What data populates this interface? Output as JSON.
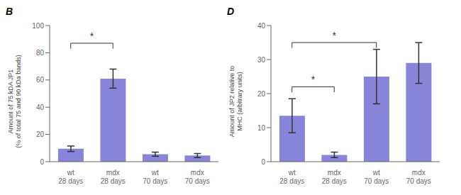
{
  "chart_data": [
    {
      "type": "bar",
      "title": "B",
      "categories": [
        "wt\n28 days",
        "mdx\n28 days",
        "wt\n70 days",
        "mdx\n70 days"
      ],
      "values": [
        9.5,
        61.0,
        5.5,
        4.5
      ],
      "errors": [
        2.0,
        7.0,
        1.5,
        1.5
      ],
      "ylabel": "Amount of 75 kDA JP1\n(% of total 75 and 90 kDa bands)",
      "ylim": [
        0,
        100
      ],
      "yticks": [
        0,
        20,
        40,
        60,
        80,
        100
      ],
      "color": "#8884d8",
      "annotations": [
        {
          "text": "*",
          "y": 87,
          "from": 0,
          "to": 1
        }
      ]
    },
    {
      "type": "bar",
      "title": "D",
      "categories": [
        "wt\n28 days",
        "mdx\n28 days",
        "wt\n70 days",
        "mdx\n70 days"
      ],
      "values": [
        13.5,
        2.0,
        25.0,
        29.0
      ],
      "errors": [
        5.0,
        0.8,
        8.0,
        6.0
      ],
      "ylabel": "Amount of JP2 relative to\nMHC (arbitrary units)",
      "ylim": [
        0,
        40
      ],
      "yticks": [
        0,
        10,
        20,
        30,
        40
      ],
      "color": "#8884d8",
      "annotations": [
        {
          "text": "*",
          "y": 35,
          "from": 0,
          "to": 2
        },
        {
          "text": "*",
          "y": 22,
          "from": 0,
          "to": 1
        }
      ]
    }
  ]
}
